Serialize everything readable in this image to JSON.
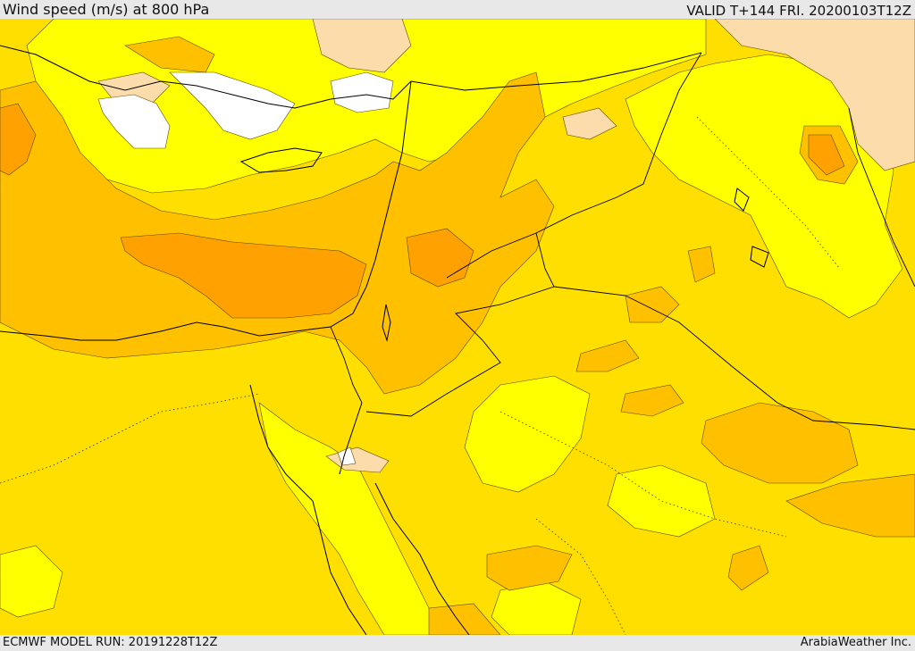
{
  "header": {
    "title": "Wind speed (m/s) at 800 hPa",
    "valid": "VALID T+144 FRI. 20200103T12Z"
  },
  "footer": {
    "model_run": "ECMWF MODEL RUN: 20191228T12Z",
    "credit": "ArabiaWeather Inc."
  },
  "colors": {
    "level_white": "#ffffff",
    "level_peach": "#fddcab",
    "level_yellow": "#ffff00",
    "level_gold": "#ffdf00",
    "level_amber": "#ffc000",
    "level_orange": "#ffa100",
    "coastline": "#000000",
    "border": "#000000"
  }
}
